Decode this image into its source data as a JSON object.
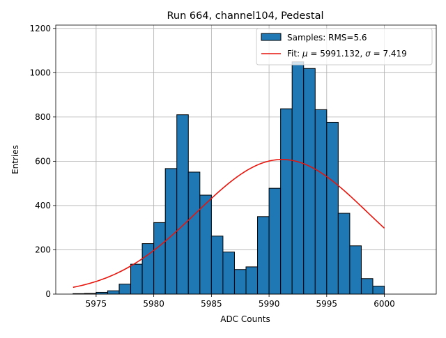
{
  "chart_data": {
    "type": "bar",
    "title": "Run 664, channel104, Pedestal",
    "xlabel": "ADC Counts",
    "ylabel": "Entries",
    "xlim": [
      5971.5,
      6004.5
    ],
    "ylim": [
      0,
      1215
    ],
    "grid": true,
    "legend_position": "top-right",
    "x_ticks": [
      5975,
      5980,
      5985,
      5990,
      5995,
      6000
    ],
    "y_ticks": [
      0,
      200,
      400,
      600,
      800,
      1000,
      1200
    ],
    "histogram": {
      "name": "Samples: RMS=5.6",
      "color": "#1f77b4",
      "edge_color": "#000000",
      "bin_width": 1,
      "bin_starts": [
        5973,
        5974,
        5975,
        5976,
        5977,
        5978,
        5979,
        5980,
        5981,
        5982,
        5983,
        5984,
        5985,
        5986,
        5987,
        5988,
        5989,
        5990,
        5991,
        5992,
        5993,
        5994,
        5995,
        5996,
        5997,
        5998,
        5999
      ],
      "values": [
        2,
        3,
        8,
        15,
        45,
        135,
        228,
        323,
        567,
        810,
        551,
        447,
        262,
        190,
        111,
        123,
        350,
        478,
        837,
        1049,
        1019,
        833,
        776,
        365,
        218,
        70,
        36
      ]
    },
    "fit": {
      "name": "Fit: μ = 5991.132, σ = 7.419",
      "label_parts": [
        "Fit: ",
        "μ",
        " = 5991.132, ",
        "σ",
        " = 7.419"
      ],
      "color": "#e8140c",
      "mu": 5991.132,
      "sigma": 7.419,
      "amplitude": 608,
      "x_range": [
        5973,
        6000
      ]
    }
  }
}
